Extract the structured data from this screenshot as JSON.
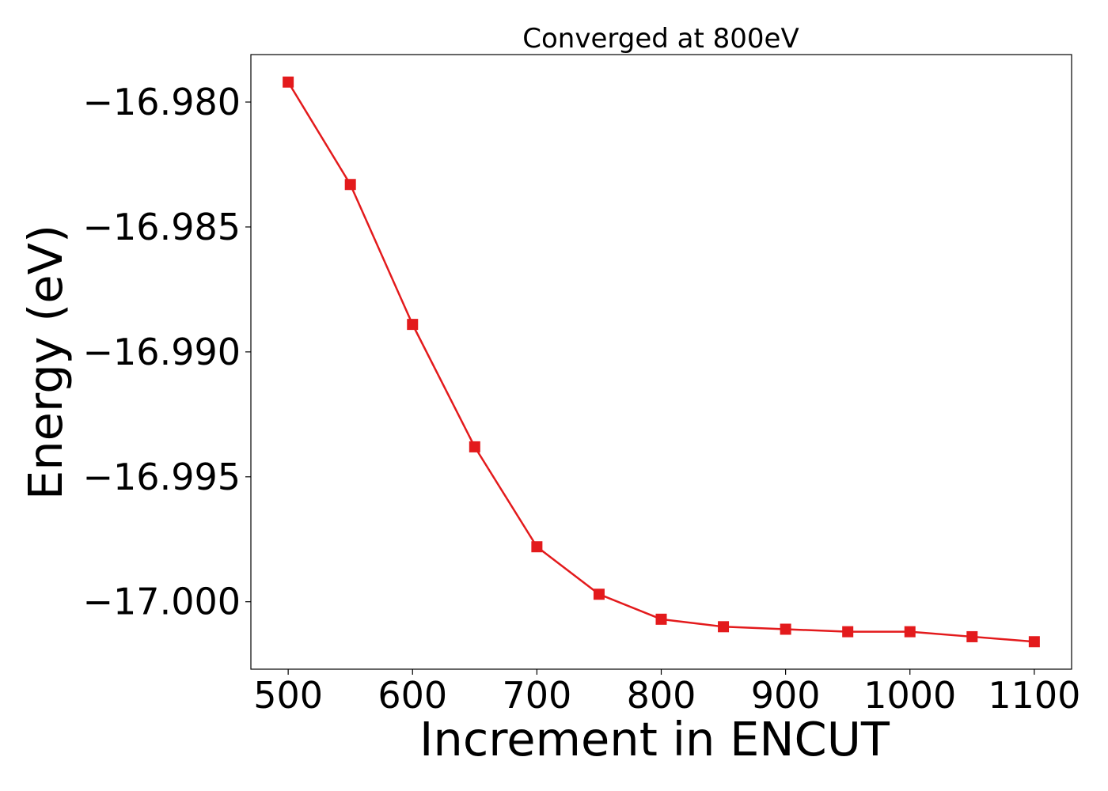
{
  "chart_data": {
    "type": "line",
    "title": "Converged at 800eV",
    "xlabel": "Increment in ENCUT",
    "ylabel": "Energy (eV)",
    "xlim": [
      470,
      1130
    ],
    "ylim": [
      -17.0027,
      -16.9781
    ],
    "xticks": [
      500,
      600,
      700,
      800,
      900,
      1000,
      1100
    ],
    "xtick_labels": [
      "500",
      "600",
      "700",
      "800",
      "900",
      "1000",
      "1100"
    ],
    "yticks": [
      -16.98,
      -16.985,
      -16.99,
      -16.995,
      -17.0
    ],
    "ytick_labels": [
      "−16.980",
      "−16.985",
      "−16.990",
      "−16.995",
      "−17.000"
    ],
    "grid": false,
    "series": [
      {
        "color": "#e31a1c",
        "marker": "square",
        "x": [
          500,
          550,
          600,
          650,
          700,
          750,
          800,
          850,
          900,
          950,
          1000,
          1050,
          1100
        ],
        "y": [
          -16.9792,
          -16.9833,
          -16.9889,
          -16.9938,
          -16.9978,
          -16.9997,
          -17.0007,
          -17.001,
          -17.0011,
          -17.0012,
          -17.0012,
          -17.0014,
          -17.0016
        ]
      }
    ]
  }
}
